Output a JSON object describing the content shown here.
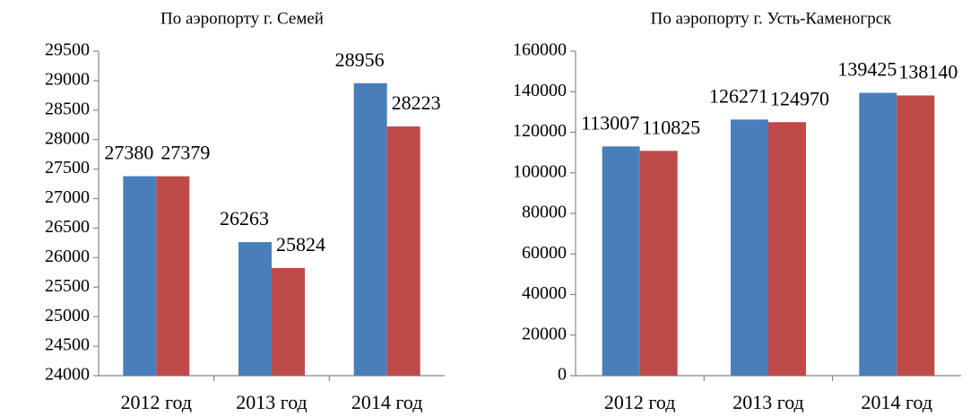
{
  "chart_data": [
    {
      "type": "bar",
      "title": "По аэропорту  г. Семей",
      "categories": [
        "2012 год",
        "2013 год",
        "2014 год"
      ],
      "series": [
        {
          "color": "#4a7ebb",
          "values": [
            27380,
            26263,
            28956
          ]
        },
        {
          "color": "#be4b48",
          "values": [
            27379,
            25824,
            28223
          ]
        }
      ],
      "ylim": [
        24000,
        29500
      ],
      "yticks": [
        24000,
        24500,
        25000,
        25500,
        26000,
        26500,
        27000,
        27500,
        28000,
        28500,
        29000,
        29500
      ]
    },
    {
      "type": "bar",
      "title": "По аэропорту  г. Усть-Каменогрск",
      "categories": [
        "2012 год",
        "2013 год",
        "2014 год"
      ],
      "series": [
        {
          "color": "#4a7ebb",
          "values": [
            113007,
            126271,
            139425
          ]
        },
        {
          "color": "#be4b48",
          "values": [
            110825,
            124970,
            138140
          ]
        }
      ],
      "ylim": [
        0,
        160000
      ],
      "yticks": [
        0,
        20000,
        40000,
        60000,
        80000,
        100000,
        120000,
        140000,
        160000
      ]
    }
  ]
}
